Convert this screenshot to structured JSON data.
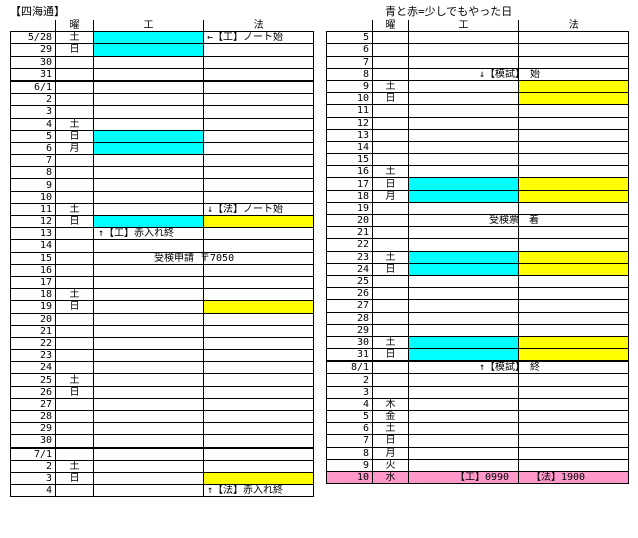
{
  "left": {
    "title": "【四海通】",
    "headers": [
      "",
      "曜",
      "工",
      "法"
    ],
    "rows": [
      {
        "d": "5/28",
        "w": "土",
        "k": "cy",
        "h": "",
        "t": "←【工】ノート始",
        "tc": "h"
      },
      {
        "d": "29",
        "w": "日",
        "k": "cy",
        "h": "",
        "t": "",
        "tc": ""
      },
      {
        "d": "30",
        "w": "",
        "k": "",
        "h": "",
        "t": "",
        "tc": ""
      },
      {
        "d": "31",
        "w": "",
        "k": "",
        "h": "",
        "t": "",
        "tc": ""
      },
      {
        "d": "6/1",
        "w": "",
        "k": "",
        "h": "",
        "t": "",
        "tc": "",
        "thick": true
      },
      {
        "d": "2",
        "w": "",
        "k": "",
        "h": "",
        "t": "",
        "tc": ""
      },
      {
        "d": "3",
        "w": "",
        "k": "",
        "h": "",
        "t": "",
        "tc": ""
      },
      {
        "d": "4",
        "w": "土",
        "k": "",
        "h": "",
        "t": "",
        "tc": ""
      },
      {
        "d": "5",
        "w": "日",
        "k": "cy",
        "h": "",
        "t": "",
        "tc": ""
      },
      {
        "d": "6",
        "w": "月",
        "k": "cy",
        "h": "",
        "t": "",
        "tc": ""
      },
      {
        "d": "7",
        "w": "",
        "k": "",
        "h": "",
        "t": "",
        "tc": ""
      },
      {
        "d": "8",
        "w": "",
        "k": "",
        "h": "",
        "t": "",
        "tc": ""
      },
      {
        "d": "9",
        "w": "",
        "k": "",
        "h": "",
        "t": "",
        "tc": ""
      },
      {
        "d": "10",
        "w": "",
        "k": "",
        "h": "",
        "t": "",
        "tc": ""
      },
      {
        "d": "11",
        "w": "土",
        "k": "",
        "h": "",
        "t": "↓【法】ノート始",
        "tc": "h"
      },
      {
        "d": "12",
        "w": "日",
        "k": "cy",
        "h": "yl",
        "t": "",
        "tc": ""
      },
      {
        "d": "13",
        "w": "",
        "k": "",
        "h": "",
        "t": "↑【工】赤入れ終",
        "tc": "k"
      },
      {
        "d": "14",
        "w": "",
        "k": "",
        "h": "",
        "t": "",
        "tc": ""
      },
      {
        "d": "15",
        "w": "",
        "k": "",
        "h": "",
        "t": "受検申請 〒7050",
        "tc": "k"
      },
      {
        "d": "16",
        "w": "",
        "k": "",
        "h": "",
        "t": "",
        "tc": ""
      },
      {
        "d": "17",
        "w": "",
        "k": "",
        "h": "",
        "t": "",
        "tc": ""
      },
      {
        "d": "18",
        "w": "土",
        "k": "",
        "h": "",
        "t": "",
        "tc": ""
      },
      {
        "d": "19",
        "w": "日",
        "k": "",
        "h": "yl",
        "t": "",
        "tc": ""
      },
      {
        "d": "20",
        "w": "",
        "k": "",
        "h": "",
        "t": "",
        "tc": ""
      },
      {
        "d": "21",
        "w": "",
        "k": "",
        "h": "",
        "t": "",
        "tc": ""
      },
      {
        "d": "22",
        "w": "",
        "k": "",
        "h": "",
        "t": "",
        "tc": ""
      },
      {
        "d": "23",
        "w": "",
        "k": "",
        "h": "",
        "t": "",
        "tc": ""
      },
      {
        "d": "24",
        "w": "",
        "k": "",
        "h": "",
        "t": "",
        "tc": ""
      },
      {
        "d": "25",
        "w": "土",
        "k": "",
        "h": "",
        "t": "",
        "tc": ""
      },
      {
        "d": "26",
        "w": "日",
        "k": "",
        "h": "",
        "t": "",
        "tc": ""
      },
      {
        "d": "27",
        "w": "",
        "k": "",
        "h": "",
        "t": "",
        "tc": ""
      },
      {
        "d": "28",
        "w": "",
        "k": "",
        "h": "",
        "t": "",
        "tc": ""
      },
      {
        "d": "29",
        "w": "",
        "k": "",
        "h": "",
        "t": "",
        "tc": ""
      },
      {
        "d": "30",
        "w": "",
        "k": "",
        "h": "",
        "t": "",
        "tc": ""
      },
      {
        "d": "7/1",
        "w": "",
        "k": "",
        "h": "",
        "t": "",
        "tc": "",
        "thick": true
      },
      {
        "d": "2",
        "w": "土",
        "k": "",
        "h": "",
        "t": "",
        "tc": ""
      },
      {
        "d": "3",
        "w": "日",
        "k": "",
        "h": "yl",
        "t": "",
        "tc": ""
      },
      {
        "d": "4",
        "w": "",
        "k": "",
        "h": "",
        "t": "↑【法】赤入れ終",
        "tc": "h"
      }
    ]
  },
  "right": {
    "title": "青と赤=少しでもやった日",
    "headers": [
      "",
      "曜",
      "工",
      "法"
    ],
    "rows": [
      {
        "d": "5",
        "w": "",
        "k": "",
        "h": "",
        "t": "",
        "tc": ""
      },
      {
        "d": "6",
        "w": "",
        "k": "",
        "h": "",
        "t": "",
        "tc": ""
      },
      {
        "d": "7",
        "w": "",
        "k": "",
        "h": "",
        "t": "",
        "tc": ""
      },
      {
        "d": "8",
        "w": "",
        "k": "",
        "h": "",
        "t": "↓【模試】　始",
        "tc": "k"
      },
      {
        "d": "9",
        "w": "土",
        "k": "",
        "h": "yl",
        "t": "",
        "tc": ""
      },
      {
        "d": "10",
        "w": "日",
        "k": "",
        "h": "yl",
        "t": "",
        "tc": ""
      },
      {
        "d": "11",
        "w": "",
        "k": "",
        "h": "",
        "t": "",
        "tc": ""
      },
      {
        "d": "12",
        "w": "",
        "k": "",
        "h": "",
        "t": "",
        "tc": ""
      },
      {
        "d": "13",
        "w": "",
        "k": "",
        "h": "",
        "t": "",
        "tc": ""
      },
      {
        "d": "14",
        "w": "",
        "k": "",
        "h": "",
        "t": "",
        "tc": ""
      },
      {
        "d": "15",
        "w": "",
        "k": "",
        "h": "",
        "t": "",
        "tc": ""
      },
      {
        "d": "16",
        "w": "土",
        "k": "",
        "h": "",
        "t": "",
        "tc": ""
      },
      {
        "d": "17",
        "w": "日",
        "k": "cy",
        "h": "yl",
        "t": "",
        "tc": ""
      },
      {
        "d": "18",
        "w": "月",
        "k": "cy",
        "h": "yl",
        "t": "",
        "tc": ""
      },
      {
        "d": "19",
        "w": "",
        "k": "",
        "h": "",
        "t": "",
        "tc": ""
      },
      {
        "d": "20",
        "w": "",
        "k": "",
        "h": "",
        "t": "受検票　着",
        "tc": "k"
      },
      {
        "d": "21",
        "w": "",
        "k": "",
        "h": "",
        "t": "",
        "tc": ""
      },
      {
        "d": "22",
        "w": "",
        "k": "",
        "h": "",
        "t": "",
        "tc": ""
      },
      {
        "d": "23",
        "w": "土",
        "k": "cy",
        "h": "yl",
        "t": "",
        "tc": ""
      },
      {
        "d": "24",
        "w": "日",
        "k": "cy",
        "h": "yl",
        "t": "",
        "tc": ""
      },
      {
        "d": "25",
        "w": "",
        "k": "",
        "h": "",
        "t": "",
        "tc": ""
      },
      {
        "d": "26",
        "w": "",
        "k": "",
        "h": "",
        "t": "",
        "tc": ""
      },
      {
        "d": "27",
        "w": "",
        "k": "",
        "h": "",
        "t": "",
        "tc": ""
      },
      {
        "d": "28",
        "w": "",
        "k": "",
        "h": "",
        "t": "",
        "tc": ""
      },
      {
        "d": "29",
        "w": "",
        "k": "",
        "h": "",
        "t": "",
        "tc": ""
      },
      {
        "d": "30",
        "w": "土",
        "k": "cy",
        "h": "yl",
        "t": "",
        "tc": ""
      },
      {
        "d": "31",
        "w": "日",
        "k": "cy",
        "h": "yl",
        "t": "",
        "tc": ""
      },
      {
        "d": "8/1",
        "w": "",
        "k": "",
        "h": "",
        "t": "↑【模試】　終",
        "tc": "k",
        "thick": true
      },
      {
        "d": "2",
        "w": "",
        "k": "",
        "h": "",
        "t": "",
        "tc": ""
      },
      {
        "d": "3",
        "w": "",
        "k": "",
        "h": "",
        "t": "",
        "tc": ""
      },
      {
        "d": "4",
        "w": "木",
        "k": "",
        "h": "",
        "t": "",
        "tc": ""
      },
      {
        "d": "5",
        "w": "金",
        "k": "",
        "h": "",
        "t": "",
        "tc": ""
      },
      {
        "d": "6",
        "w": "土",
        "k": "",
        "h": "",
        "t": "",
        "tc": ""
      },
      {
        "d": "7",
        "w": "日",
        "k": "",
        "h": "",
        "t": "",
        "tc": ""
      },
      {
        "d": "8",
        "w": "月",
        "k": "",
        "h": "",
        "t": "",
        "tc": ""
      },
      {
        "d": "9",
        "w": "火",
        "k": "",
        "h": "",
        "t": "",
        "tc": ""
      },
      {
        "d": "10",
        "w": "水",
        "k": "pk",
        "h": "pk",
        "t": "",
        "tc": "",
        "pink": true,
        "pk1": "【工】0990",
        "pk2": "【法】1900"
      }
    ]
  },
  "colors": {
    "cy": "#00ffff",
    "yl": "#ffff00",
    "pk": "#ff99cc"
  }
}
